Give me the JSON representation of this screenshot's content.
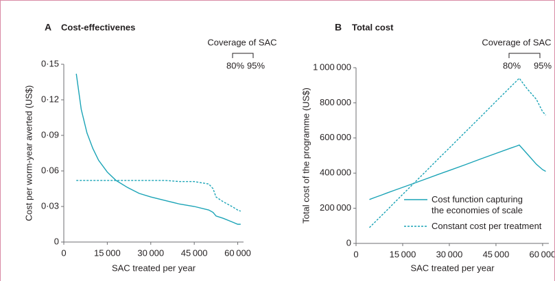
{
  "chart_data": [
    {
      "type": "line",
      "panel": "A",
      "title": "Cost-effectivenes",
      "xlabel": "SAC treated per year",
      "ylabel": "Cost per worm-year averted (US$)",
      "annotation": {
        "title": "Coverage of SAC",
        "labels": [
          "80%",
          "95%"
        ]
      },
      "x": [
        4300,
        6000,
        8000,
        10000,
        12000,
        15000,
        18000,
        22000,
        26000,
        30000,
        35000,
        40000,
        45000,
        50000,
        51500,
        52500,
        55000,
        58000,
        60000,
        61000
      ],
      "series": [
        {
          "color": "#19a3b6",
          "line_style": "solid",
          "values": [
            0.142,
            0.112,
            0.092,
            0.079,
            0.069,
            0.059,
            0.052,
            0.046,
            0.041,
            0.038,
            0.035,
            0.032,
            0.03,
            0.027,
            0.025,
            0.022,
            0.02,
            0.017,
            0.015,
            0.015
          ]
        },
        {
          "color": "#19a3b6",
          "line_style": "dashed",
          "values": [
            0.052,
            0.052,
            0.052,
            0.052,
            0.052,
            0.052,
            0.052,
            0.052,
            0.052,
            0.052,
            0.052,
            0.051,
            0.051,
            0.049,
            0.045,
            0.038,
            0.034,
            0.03,
            0.027,
            0.026
          ]
        }
      ],
      "xlim": [
        0,
        62000
      ],
      "xticks": [
        0,
        {
          "value": 15000,
          "label": "15 000"
        },
        {
          "value": 30000,
          "label": "30 000"
        },
        {
          "value": 45000,
          "label": "45 000"
        },
        {
          "value": 60000,
          "label": "60 000"
        }
      ],
      "ylim": [
        0,
        0.15
      ],
      "yticks": [
        0,
        {
          "value": 0.03,
          "label": "0·03"
        },
        {
          "value": 0.06,
          "label": "0·06"
        },
        {
          "value": 0.09,
          "label": "0·09"
        },
        {
          "value": 0.12,
          "label": "0·12"
        },
        {
          "value": 0.15,
          "label": "0·15"
        }
      ]
    },
    {
      "type": "line",
      "panel": "B",
      "title": "Total cost",
      "xlabel": "SAC treated per year",
      "ylabel": "Total cost of the programme (US$)",
      "annotation": {
        "title": "Coverage of SAC",
        "labels": [
          "80%",
          "95%"
        ]
      },
      "legend": "lower right",
      "x": [
        4300,
        6000,
        8000,
        10000,
        12000,
        15000,
        18000,
        22000,
        26000,
        30000,
        35000,
        40000,
        45000,
        50000,
        51500,
        52500,
        55000,
        58000,
        60000,
        61000
      ],
      "series": [
        {
          "name": "Cost function capturing the economies of scale",
          "color": "#19a3b6",
          "line_style": "solid",
          "values": [
            250000,
            261000,
            274000,
            287000,
            300000,
            319000,
            338000,
            364000,
            390000,
            415000,
            447000,
            480000,
            512000,
            544000,
            553000,
            560000,
            510000,
            450000,
            420000,
            410000
          ]
        },
        {
          "name": "Constant cost per treatment",
          "color": "#19a3b6",
          "line_style": "dashed",
          "values": [
            90000,
            120000,
            155000,
            190000,
            226000,
            279000,
            332000,
            402000,
            473000,
            543000,
            631000,
            719000,
            808000,
            896000,
            922000,
            940000,
            880000,
            820000,
            750000,
            730000
          ]
        }
      ],
      "xlim": [
        0,
        62000
      ],
      "xticks": [
        0,
        {
          "value": 15000,
          "label": "15 000"
        },
        {
          "value": 30000,
          "label": "30 000"
        },
        {
          "value": 45000,
          "label": "45 000"
        },
        {
          "value": 60000,
          "label": "60 000"
        }
      ],
      "ylim": [
        0,
        1000000
      ],
      "yticks": [
        0,
        {
          "value": 200000,
          "label": "200 000"
        },
        {
          "value": 400000,
          "label": "400 000"
        },
        {
          "value": 600000,
          "label": "600 000"
        },
        {
          "value": 800000,
          "label": "800 000"
        },
        {
          "value": 1000000,
          "label": "1 000 000"
        }
      ]
    }
  ]
}
